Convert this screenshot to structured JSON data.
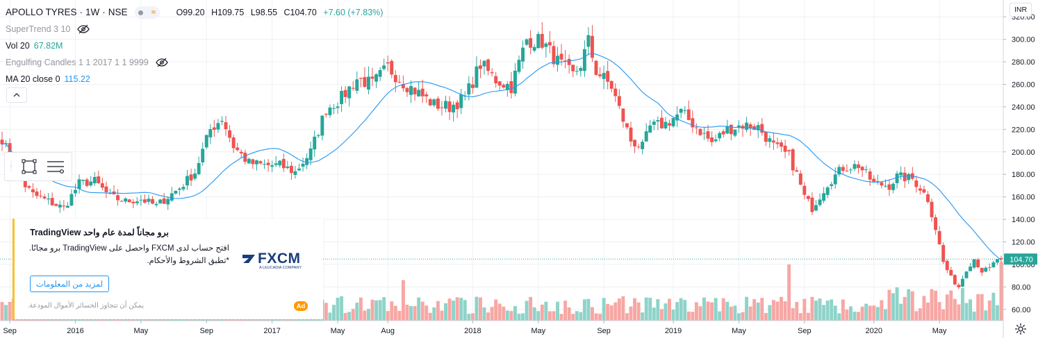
{
  "symbol": {
    "name": "APOLLO TYRES",
    "interval": "1W",
    "exchange": "NSE",
    "separator": "·"
  },
  "ohlc": {
    "open": "O99.20",
    "high": "H109.75",
    "low": "L98.55",
    "close": "C104.70",
    "change": "+7.60 (+7.83%)"
  },
  "indicators": [
    {
      "label": "SuperTrend 3 10",
      "value": "",
      "hidden": true
    },
    {
      "label": "Vol 20",
      "value": "67.82M",
      "value_color": "#26a69a"
    },
    {
      "label": "Engulfing Candles 1 1 2017 1 1 9999",
      "value": "",
      "hidden": true
    },
    {
      "label": "MA 20 close 0",
      "value": "115.22",
      "value_color": "#2196f3"
    }
  ],
  "currency": "INR",
  "last_price_label": "104.70",
  "ad": {
    "headline": "برو مجاناً لمدة عام واحد TradingView",
    "body": "افتح حساب لدى FXCM واحصل على TradingView برو مجانًا. *تطبق الشروط والأحكام.",
    "cta": "لمزيد من المعلومات",
    "disclaimer": "يمكن أن تتجاوز الخسائر الأموال المودعة.",
    "badge": "Ad",
    "logo_text": "FXCM",
    "logo_sub": "A LEUCADIA COMPANY"
  },
  "icons": {
    "hide": "eye-off-icon",
    "collapse": "chevron-up-icon",
    "settings": "gear-icon",
    "rect": "rectangle-tool-icon",
    "lines": "settings-lines-icon"
  },
  "colors": {
    "up": "#26a69a",
    "down": "#ef5350",
    "vol_up": "#8fd3c9",
    "vol_down": "#f7a7a4",
    "ma": "#2196f3",
    "grid": "#eef0f3",
    "last": "#26a69a"
  },
  "chart_data": {
    "type": "candlestick",
    "title": "APOLLO TYRES · 1W · NSE",
    "xlabel": "",
    "ylabel": "",
    "ylim": [
      50,
      330
    ],
    "y_ticks": [
      60,
      80,
      100,
      120,
      140,
      160,
      180,
      200,
      220,
      240,
      260,
      280,
      300,
      320
    ],
    "y_tick_labels": [
      "60.00",
      "80.00",
      "100.00",
      "120.00",
      "140.00",
      "160.00",
      "180.00",
      "200.00",
      "220.00",
      "240.00",
      "260.00",
      "280.00",
      "300.00",
      "320.00"
    ],
    "x_tick_labels": [
      {
        "label": "Sep",
        "index": 2
      },
      {
        "label": "2016",
        "index": 19
      },
      {
        "label": "May",
        "index": 36
      },
      {
        "label": "Sep",
        "index": 53
      },
      {
        "label": "2017",
        "index": 70
      },
      {
        "label": "May",
        "index": 87
      },
      {
        "label": "Aug",
        "index": 100
      },
      {
        "label": "2018",
        "index": 122
      },
      {
        "label": "May",
        "index": 139
      },
      {
        "label": "Sep",
        "index": 156
      },
      {
        "label": "2019",
        "index": 174
      },
      {
        "label": "May",
        "index": 191
      },
      {
        "label": "Sep",
        "index": 208
      },
      {
        "label": "2020",
        "index": 226
      },
      {
        "label": "May",
        "index": 243
      }
    ],
    "last_price": 104.7,
    "path_points": [
      [
        0,
        212
      ],
      [
        4,
        178
      ],
      [
        8,
        162
      ],
      [
        12,
        156
      ],
      [
        16,
        150
      ],
      [
        20,
        172
      ],
      [
        24,
        174
      ],
      [
        28,
        160
      ],
      [
        32,
        156
      ],
      [
        36,
        158
      ],
      [
        40,
        152
      ],
      [
        46,
        168
      ],
      [
        50,
        182
      ],
      [
        54,
        220
      ],
      [
        57,
        230
      ],
      [
        60,
        205
      ],
      [
        64,
        190
      ],
      [
        68,
        188
      ],
      [
        72,
        188
      ],
      [
        76,
        182
      ],
      [
        80,
        200
      ],
      [
        84,
        238
      ],
      [
        88,
        248
      ],
      [
        92,
        265
      ],
      [
        96,
        260
      ],
      [
        100,
        275
      ],
      [
        104,
        262
      ],
      [
        108,
        252
      ],
      [
        112,
        242
      ],
      [
        116,
        240
      ],
      [
        120,
        248
      ],
      [
        124,
        278
      ],
      [
        128,
        264
      ],
      [
        132,
        258
      ],
      [
        136,
        300
      ],
      [
        140,
        298
      ],
      [
        144,
        280
      ],
      [
        148,
        268
      ],
      [
        150,
        278
      ],
      [
        152,
        298
      ],
      [
        154,
        272
      ],
      [
        158,
        258
      ],
      [
        160,
        238
      ],
      [
        163,
        210
      ],
      [
        166,
        204
      ],
      [
        168,
        222
      ],
      [
        172,
        225
      ],
      [
        176,
        235
      ],
      [
        180,
        222
      ],
      [
        184,
        208
      ],
      [
        188,
        220
      ],
      [
        192,
        224
      ],
      [
        196,
        222
      ],
      [
        200,
        205
      ],
      [
        204,
        196
      ],
      [
        206,
        180
      ],
      [
        208,
        160
      ],
      [
        210,
        150
      ],
      [
        214,
        172
      ],
      [
        218,
        186
      ],
      [
        222,
        188
      ],
      [
        226,
        172
      ],
      [
        230,
        170
      ],
      [
        232,
        178
      ],
      [
        236,
        176
      ],
      [
        238,
        168
      ],
      [
        240,
        158
      ],
      [
        242,
        132
      ],
      [
        244,
        102
      ],
      [
        246,
        88
      ],
      [
        248,
        80
      ],
      [
        250,
        96
      ],
      [
        252,
        105
      ],
      [
        254,
        94
      ],
      [
        256,
        96
      ],
      [
        258,
        105
      ]
    ],
    "volume_axis": {
      "min": 50,
      "max": 105,
      "unit": "M"
    }
  }
}
